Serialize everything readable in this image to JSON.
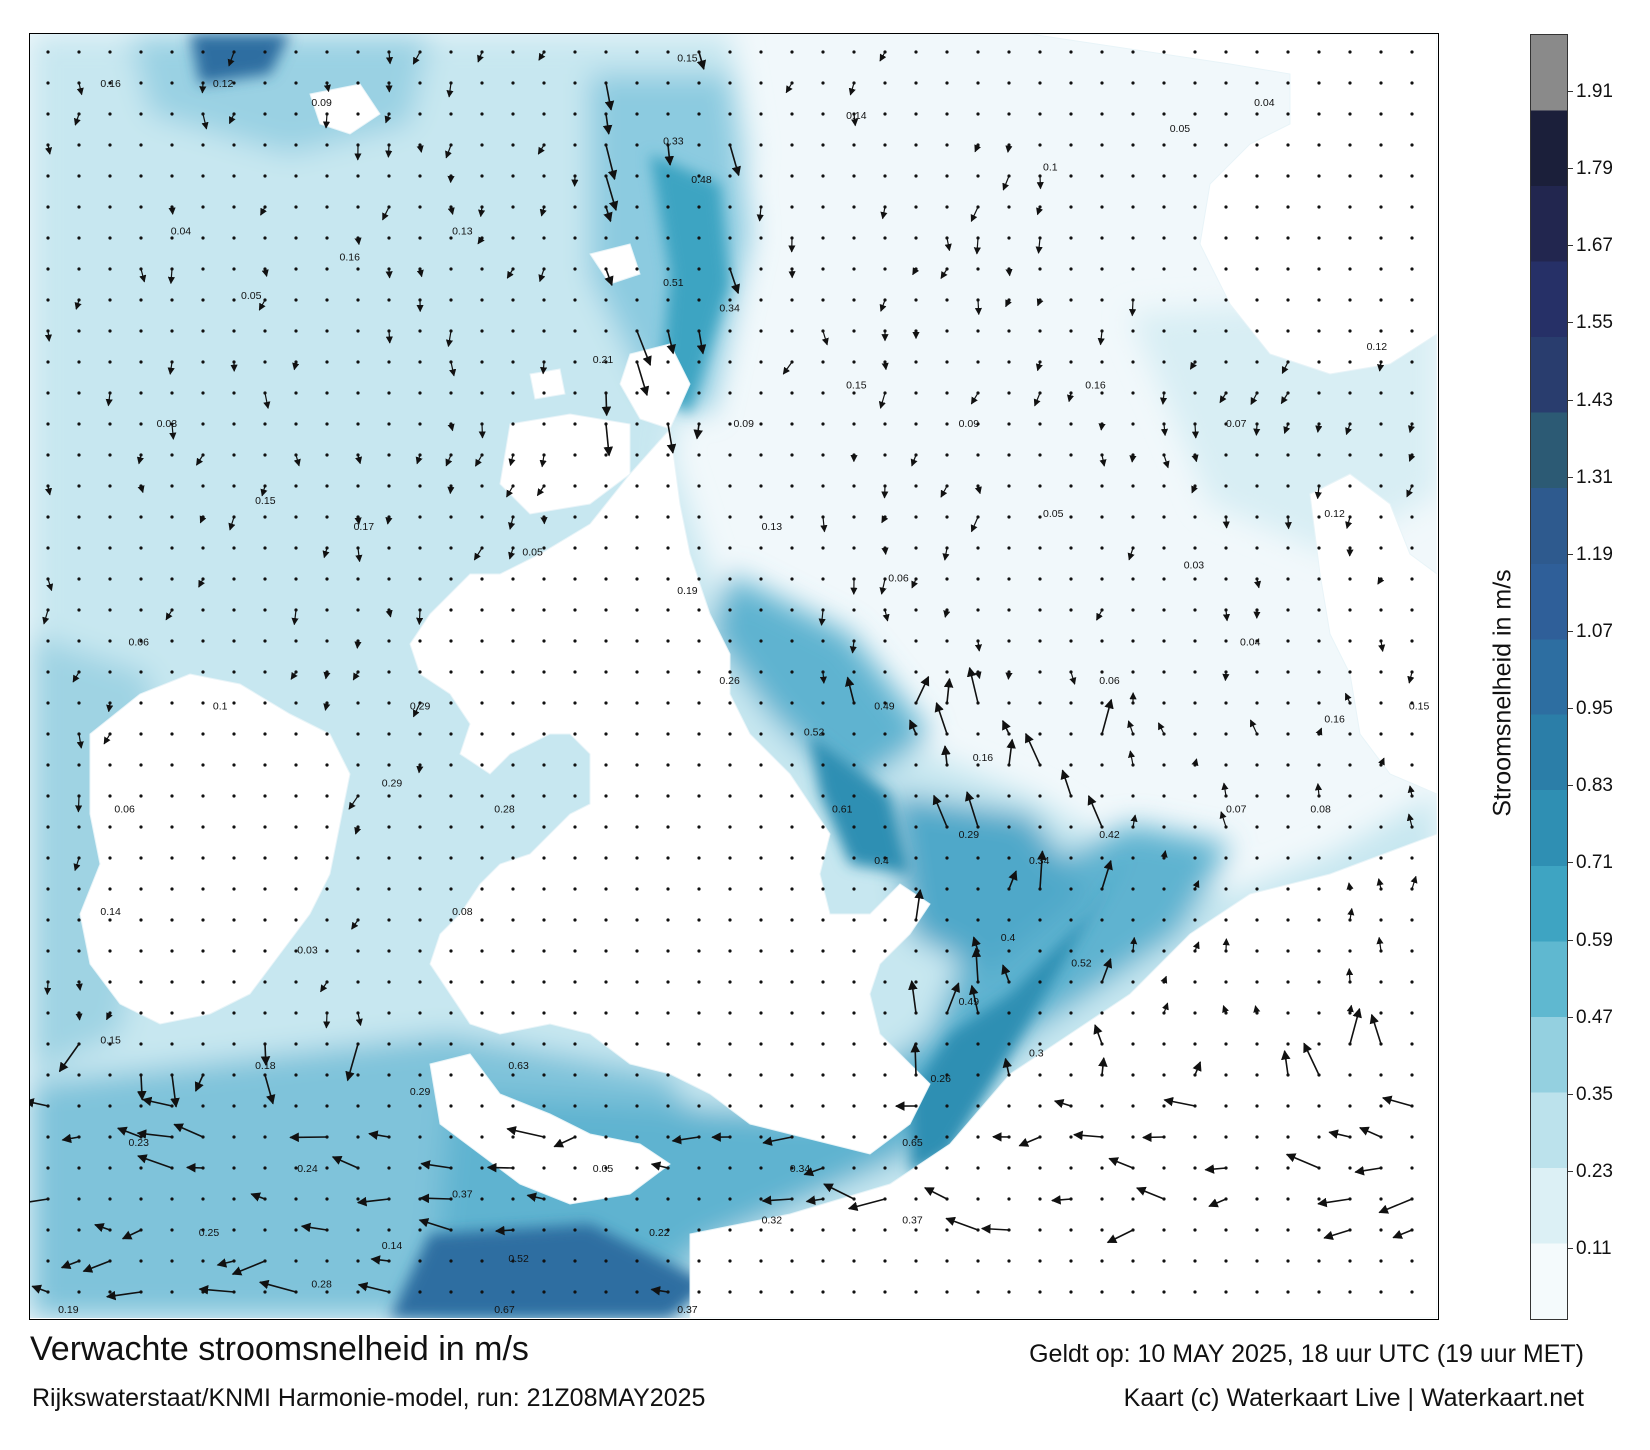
{
  "title": "Verwachte stroomsnelheid in m/s",
  "source": "Rijkswaterstaat/KNMI Harmonie-model, run: 21Z08MAY2025",
  "valid_time": "Geldt op: 10 MAY 2025, 18 uur UTC (19 uur MET)",
  "credit": "Kaart (c) Waterkaart Live | Waterkaart.net",
  "colorbar": {
    "label": "Stroomsnelheid in m/s",
    "unit": "m/s",
    "min": 0,
    "max": 2.0,
    "ticks": [
      "1.91",
      "1.79",
      "1.67",
      "1.55",
      "1.43",
      "1.31",
      "1.19",
      "1.07",
      "0.95",
      "0.83",
      "0.71",
      "0.59",
      "0.47",
      "0.35",
      "0.23",
      "0.11"
    ],
    "colors": [
      "#f4fafc",
      "#dcf0f5",
      "#bce2ec",
      "#94d0e0",
      "#5fb8d0",
      "#3ea4c2",
      "#2f8fb3",
      "#2b7ea8",
      "#2d6ea1",
      "#2f5f99",
      "#2e5a8e",
      "#2c5a74",
      "#293d6e",
      "#263067",
      "#22264f",
      "#1b1f3a",
      "#8a8a8a"
    ]
  },
  "speed_labels": [
    {
      "lon": 0.05,
      "lat": 0.035,
      "v": "0.16"
    },
    {
      "lon": 0.13,
      "lat": 0.035,
      "v": "0.12"
    },
    {
      "lon": 0.2,
      "lat": 0.05,
      "v": "0.09"
    },
    {
      "lon": 0.46,
      "lat": 0.015,
      "v": "0.15"
    },
    {
      "lon": 0.45,
      "lat": 0.08,
      "v": "0.33"
    },
    {
      "lon": 0.47,
      "lat": 0.11,
      "v": "0.48"
    },
    {
      "lon": 0.45,
      "lat": 0.19,
      "v": "0.51"
    },
    {
      "lon": 0.49,
      "lat": 0.21,
      "v": "0.34"
    },
    {
      "lon": 0.58,
      "lat": 0.06,
      "v": "0.14"
    },
    {
      "lon": 0.72,
      "lat": 0.1,
      "v": "0.1"
    },
    {
      "lon": 0.81,
      "lat": 0.07,
      "v": "0.05"
    },
    {
      "lon": 0.87,
      "lat": 0.05,
      "v": "0.04"
    },
    {
      "lon": 0.1,
      "lat": 0.15,
      "v": "0.04"
    },
    {
      "lon": 0.15,
      "lat": 0.2,
      "v": "0.05"
    },
    {
      "lon": 0.22,
      "lat": 0.17,
      "v": "0.16"
    },
    {
      "lon": 0.3,
      "lat": 0.15,
      "v": "0.13"
    },
    {
      "lon": 0.4,
      "lat": 0.25,
      "v": "0.21"
    },
    {
      "lon": 0.5,
      "lat": 0.3,
      "v": "0.09"
    },
    {
      "lon": 0.58,
      "lat": 0.27,
      "v": "0.15"
    },
    {
      "lon": 0.66,
      "lat": 0.3,
      "v": "0.09"
    },
    {
      "lon": 0.75,
      "lat": 0.27,
      "v": "0.16"
    },
    {
      "lon": 0.85,
      "lat": 0.3,
      "v": "0.07"
    },
    {
      "lon": 0.95,
      "lat": 0.24,
      "v": "0.12"
    },
    {
      "lon": 0.09,
      "lat": 0.3,
      "v": "0.03"
    },
    {
      "lon": 0.16,
      "lat": 0.36,
      "v": "0.15"
    },
    {
      "lon": 0.23,
      "lat": 0.38,
      "v": "0.17"
    },
    {
      "lon": 0.35,
      "lat": 0.4,
      "v": "0.05"
    },
    {
      "lon": 0.46,
      "lat": 0.43,
      "v": "0.19"
    },
    {
      "lon": 0.52,
      "lat": 0.38,
      "v": "0.13"
    },
    {
      "lon": 0.61,
      "lat": 0.42,
      "v": "0.06"
    },
    {
      "lon": 0.72,
      "lat": 0.37,
      "v": "0.05"
    },
    {
      "lon": 0.82,
      "lat": 0.41,
      "v": "0.03"
    },
    {
      "lon": 0.92,
      "lat": 0.37,
      "v": "0.12"
    },
    {
      "lon": 0.07,
      "lat": 0.47,
      "v": "0.06"
    },
    {
      "lon": 0.13,
      "lat": 0.52,
      "v": "0.1"
    },
    {
      "lon": 0.27,
      "lat": 0.52,
      "v": "0.29"
    },
    {
      "lon": 0.49,
      "lat": 0.5,
      "v": "0.26"
    },
    {
      "lon": 0.55,
      "lat": 0.54,
      "v": "0.52"
    },
    {
      "lon": 0.6,
      "lat": 0.52,
      "v": "0.49"
    },
    {
      "lon": 0.67,
      "lat": 0.56,
      "v": "0.16"
    },
    {
      "lon": 0.76,
      "lat": 0.5,
      "v": "0.06"
    },
    {
      "lon": 0.86,
      "lat": 0.47,
      "v": "0.04"
    },
    {
      "lon": 0.92,
      "lat": 0.53,
      "v": "0.16"
    },
    {
      "lon": 0.98,
      "lat": 0.52,
      "v": "0.15"
    },
    {
      "lon": 0.06,
      "lat": 0.6,
      "v": "0.06"
    },
    {
      "lon": 0.25,
      "lat": 0.58,
      "v": "0.29"
    },
    {
      "lon": 0.33,
      "lat": 0.6,
      "v": "0.28"
    },
    {
      "lon": 0.57,
      "lat": 0.6,
      "v": "0.61"
    },
    {
      "lon": 0.6,
      "lat": 0.64,
      "v": "0.4"
    },
    {
      "lon": 0.66,
      "lat": 0.62,
      "v": "0.29"
    },
    {
      "lon": 0.71,
      "lat": 0.64,
      "v": "0.34"
    },
    {
      "lon": 0.76,
      "lat": 0.62,
      "v": "0.42"
    },
    {
      "lon": 0.85,
      "lat": 0.6,
      "v": "0.07"
    },
    {
      "lon": 0.91,
      "lat": 0.6,
      "v": "0.08"
    },
    {
      "lon": 0.05,
      "lat": 0.68,
      "v": "0.14"
    },
    {
      "lon": 0.19,
      "lat": 0.71,
      "v": "0.03"
    },
    {
      "lon": 0.3,
      "lat": 0.68,
      "v": "0.08"
    },
    {
      "lon": 0.69,
      "lat": 0.7,
      "v": "0.4"
    },
    {
      "lon": 0.74,
      "lat": 0.72,
      "v": "0.52"
    },
    {
      "lon": 0.66,
      "lat": 0.75,
      "v": "0.49"
    },
    {
      "lon": 0.05,
      "lat": 0.78,
      "v": "0.15"
    },
    {
      "lon": 0.16,
      "lat": 0.8,
      "v": "0.18"
    },
    {
      "lon": 0.27,
      "lat": 0.82,
      "v": "0.29"
    },
    {
      "lon": 0.34,
      "lat": 0.8,
      "v": "0.63"
    },
    {
      "lon": 0.64,
      "lat": 0.81,
      "v": "0.26"
    },
    {
      "lon": 0.71,
      "lat": 0.79,
      "v": "0.3"
    },
    {
      "lon": 0.07,
      "lat": 0.86,
      "v": "0.23"
    },
    {
      "lon": 0.19,
      "lat": 0.88,
      "v": "0.24"
    },
    {
      "lon": 0.3,
      "lat": 0.9,
      "v": "0.37"
    },
    {
      "lon": 0.4,
      "lat": 0.88,
      "v": "0.05"
    },
    {
      "lon": 0.54,
      "lat": 0.88,
      "v": "0.34"
    },
    {
      "lon": 0.62,
      "lat": 0.86,
      "v": "0.65"
    },
    {
      "lon": 0.12,
      "lat": 0.93,
      "v": "0.25"
    },
    {
      "lon": 0.25,
      "lat": 0.94,
      "v": "0.14"
    },
    {
      "lon": 0.34,
      "lat": 0.95,
      "v": "0.52"
    },
    {
      "lon": 0.44,
      "lat": 0.93,
      "v": "0.22"
    },
    {
      "lon": 0.52,
      "lat": 0.92,
      "v": "0.32"
    },
    {
      "lon": 0.62,
      "lat": 0.92,
      "v": "0.37"
    },
    {
      "lon": 0.02,
      "lat": 0.99,
      "v": "0.19"
    },
    {
      "lon": 0.2,
      "lat": 0.97,
      "v": "0.28"
    },
    {
      "lon": 0.33,
      "lat": 0.99,
      "v": "0.67"
    },
    {
      "lon": 0.46,
      "lat": 0.99,
      "v": "0.37"
    }
  ]
}
